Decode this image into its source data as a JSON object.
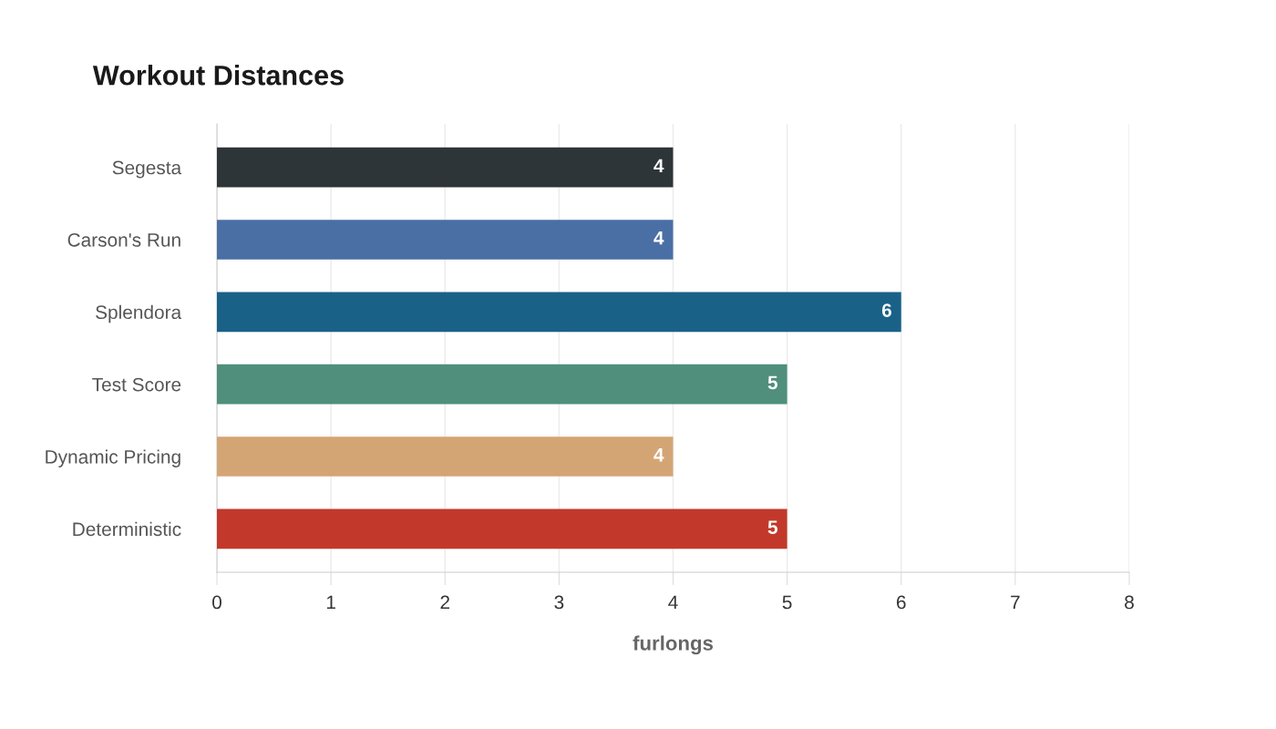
{
  "chart_data": {
    "type": "bar",
    "orientation": "horizontal",
    "title": "Workout Distances",
    "xlabel": "furlongs",
    "categories": [
      "Segesta",
      "Carson's Run",
      "Splendora",
      "Test Score",
      "Dynamic Pricing",
      "Deterministic"
    ],
    "values": [
      4,
      4,
      6,
      5,
      4,
      5
    ],
    "colors": [
      "#2e3538",
      "#4a6fa5",
      "#1a6188",
      "#4f8f7b",
      "#d4a574",
      "#c2392b"
    ],
    "xlim": [
      0,
      8
    ],
    "xticks": [
      0,
      1,
      2,
      3,
      4,
      5,
      6,
      7,
      8
    ],
    "grid": "x",
    "data_labels": true
  }
}
